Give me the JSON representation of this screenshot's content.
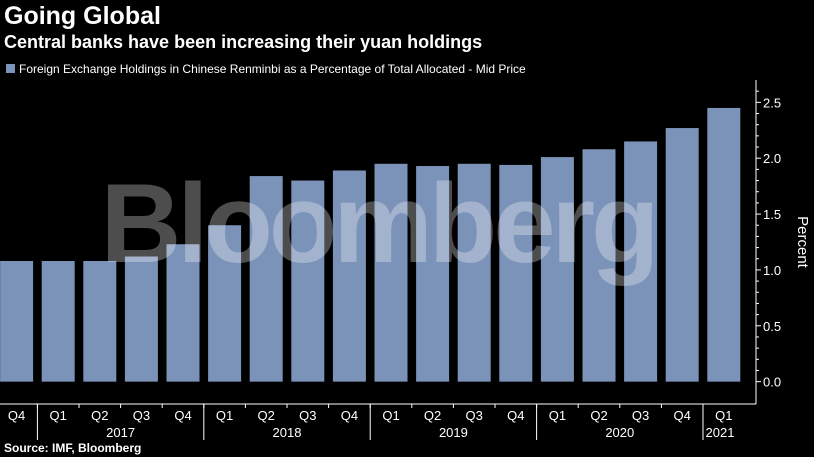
{
  "header": {
    "title": "Going Global",
    "subtitle": "Central banks have been increasing their yuan holdings"
  },
  "footer": {
    "source": "Source: IMF, Bloomberg"
  },
  "watermark": "Bloomberg",
  "colors": {
    "bar": "#7b93b8",
    "background": "#000000",
    "axis": "#ffffff",
    "watermark": "#ffffff"
  },
  "chart_data": {
    "type": "bar",
    "categories": [
      "Q4",
      "Q1",
      "Q2",
      "Q3",
      "Q4",
      "Q1",
      "Q2",
      "Q3",
      "Q4",
      "Q1",
      "Q2",
      "Q3",
      "Q4",
      "Q1",
      "Q2",
      "Q3",
      "Q4",
      "Q1"
    ],
    "years": [
      {
        "label": "2017",
        "start": 1,
        "end": 4
      },
      {
        "label": "2018",
        "start": 5,
        "end": 8
      },
      {
        "label": "2019",
        "start": 9,
        "end": 12
      },
      {
        "label": "2020",
        "start": 13,
        "end": 16
      },
      {
        "label": "2021",
        "start": 17,
        "end": 17
      }
    ],
    "series": [
      {
        "name": "Foreign Exchange Holdings in Chinese Renminbi as a Percentage of Total Allocated - Mid Price",
        "values": [
          1.08,
          1.08,
          1.08,
          1.12,
          1.23,
          1.4,
          1.84,
          1.8,
          1.89,
          1.95,
          1.93,
          1.95,
          1.94,
          2.01,
          2.08,
          2.15,
          2.27,
          2.45
        ]
      }
    ],
    "ylabel": "Percent",
    "ylim": [
      -0.2,
      2.7
    ],
    "yticks": [
      "0.0",
      "0.5",
      "1.0",
      "1.5",
      "2.0",
      "2.5"
    ],
    "grid": false,
    "legend": "top-left"
  }
}
